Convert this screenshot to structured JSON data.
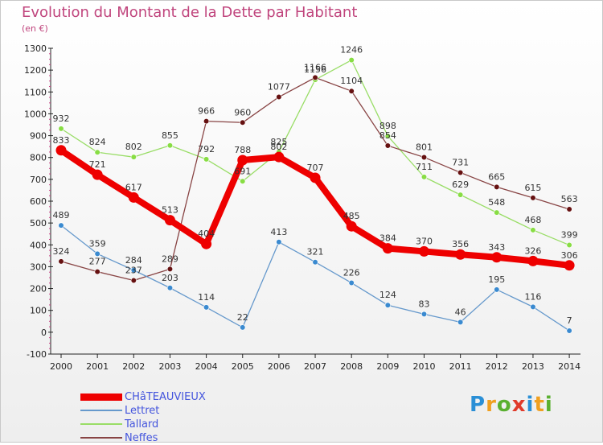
{
  "header": {
    "title": "Evolution du Montant de la Dette par Habitant",
    "unit": "(en €)"
  },
  "logo": {
    "text": "Proxiti",
    "colors": [
      "#2a8fd6",
      "#f0a020",
      "#5ab030",
      "#e03a2a",
      "#2a8fd6",
      "#f0a020",
      "#5ab030"
    ]
  },
  "chart_data": {
    "type": "line",
    "ylim": [
      -100,
      1300
    ],
    "ytick_step": 100,
    "grid": false,
    "legend_position": "bottom-left",
    "categories": [
      "2000",
      "2001",
      "2002",
      "2003",
      "2004",
      "2005",
      "2006",
      "2007",
      "2008",
      "2009",
      "2010",
      "2011",
      "2012",
      "2013",
      "2014"
    ],
    "series": [
      {
        "name": "CHâTEAUVIEUX",
        "color": "#ee0000",
        "marker": "#ee0000",
        "width": 8,
        "values": [
          833,
          721,
          617,
          513,
          404,
          788,
          802,
          707,
          485,
          384,
          370,
          356,
          343,
          326,
          306
        ]
      },
      {
        "name": "Lettret",
        "color": "#6699cc",
        "marker": "#3a8ad0",
        "width": 1.3,
        "values": [
          489,
          359,
          284,
          203,
          114,
          22,
          413,
          321,
          226,
          124,
          83,
          46,
          195,
          116,
          7
        ]
      },
      {
        "name": "Tallard",
        "color": "#99dd66",
        "marker": "#88dd44",
        "width": 1.3,
        "values": [
          932,
          824,
          802,
          855,
          792,
          691,
          825,
          1156,
          1246,
          898,
          711,
          629,
          548,
          468,
          399
        ]
      },
      {
        "name": "Neffes",
        "color": "#884444",
        "marker": "#661111",
        "width": 1.3,
        "values": [
          324,
          277,
          237,
          289,
          966,
          960,
          1077,
          1166,
          1104,
          854,
          801,
          731,
          665,
          615,
          563
        ]
      }
    ]
  }
}
